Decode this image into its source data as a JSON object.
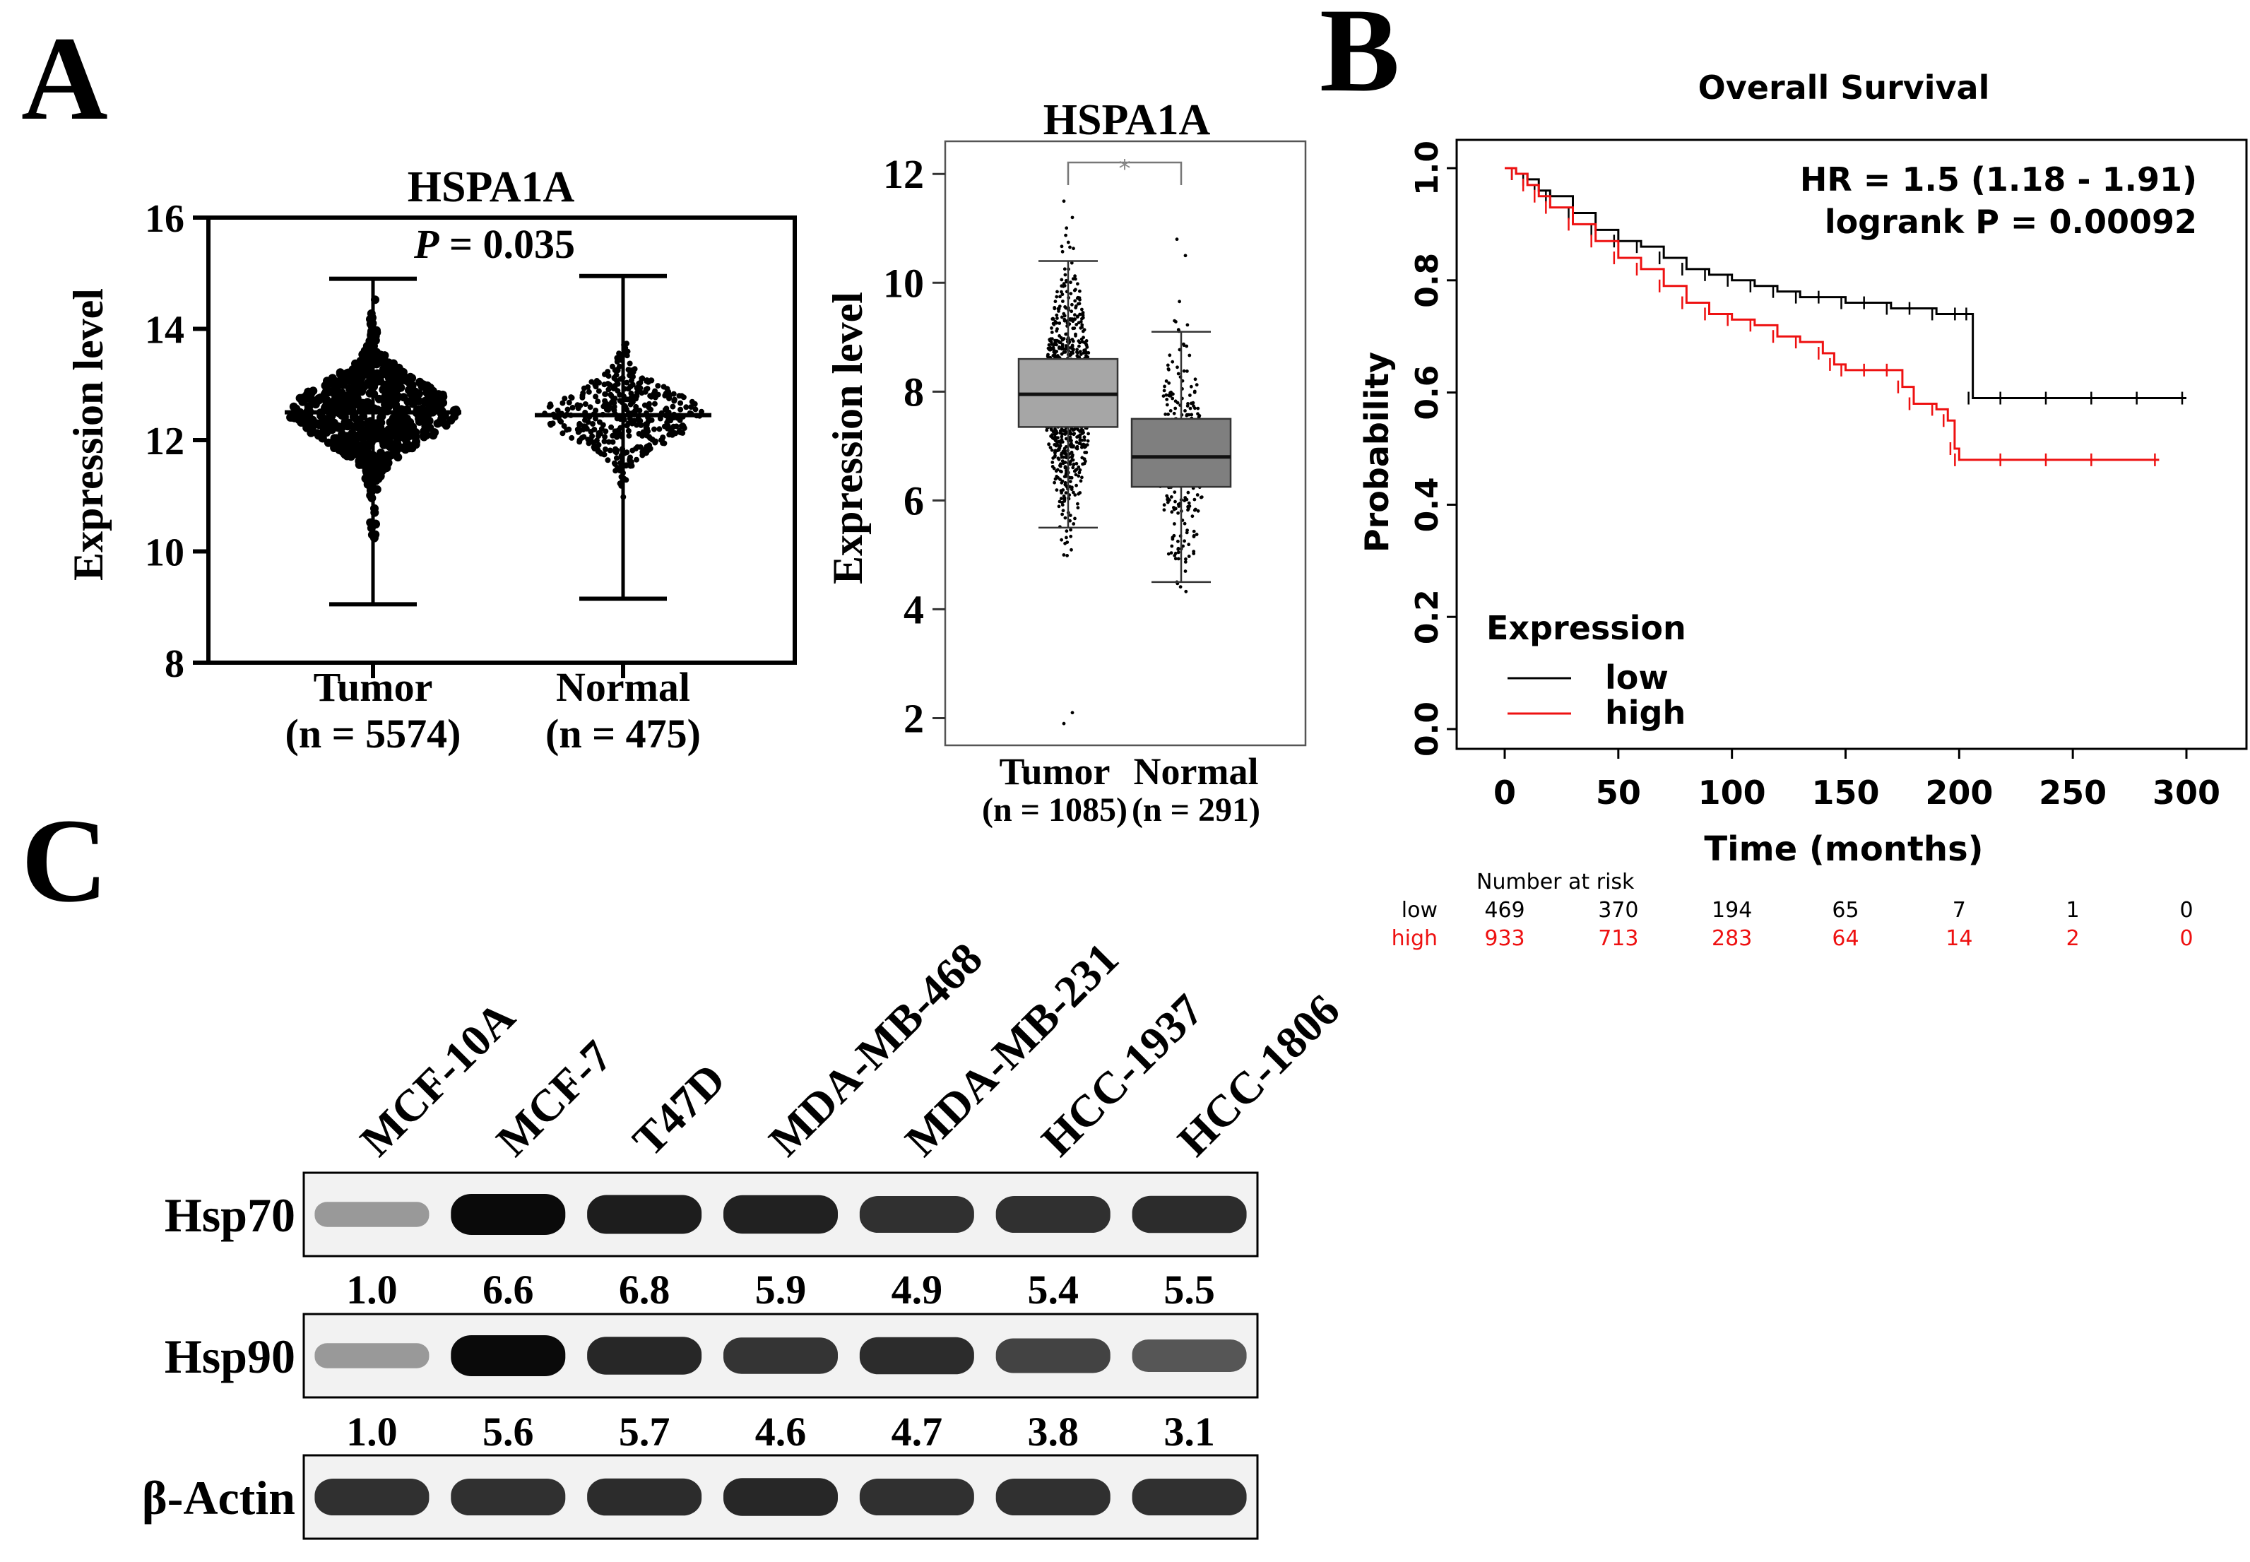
{
  "colors": {
    "ink": "#000000",
    "red": "#ee1111",
    "box_tumor": "#a6a6a6",
    "box_normal": "#7f7f7f",
    "blot_bg": "#f2f2f2",
    "axis_grey": "#888888"
  },
  "panel_letters": {
    "a": "A",
    "b": "B",
    "c": "C"
  },
  "chart_data": [
    {
      "id": "A1",
      "type": "scatter",
      "title": "HSPA1A",
      "p_label": "P",
      "p_value": "= 0.035",
      "ylabel": "Expression level",
      "ylim": [
        8,
        16
      ],
      "yticks": [
        8,
        10,
        12,
        14,
        16
      ],
      "groups": [
        {
          "name": "Tumor",
          "n_label": "(n = 5574)",
          "median": 12.5,
          "min": 9.05,
          "max": 14.9,
          "spread": 0.65,
          "points": 700
        },
        {
          "name": "Normal",
          "n_label": "(n = 475)",
          "median": 12.45,
          "min": 9.15,
          "max": 14.95,
          "spread": 0.55,
          "points": 420
        }
      ]
    },
    {
      "id": "A2",
      "type": "box",
      "title": "HSPA1A",
      "significance": "*",
      "ylabel": "Expression level",
      "ylim": [
        1.5,
        12.6
      ],
      "yticks": [
        2,
        4,
        6,
        8,
        10,
        12
      ],
      "groups": [
        {
          "name": "Tumor",
          "n_label": "(n = 1085)",
          "q1": 7.35,
          "median": 7.95,
          "q3": 8.6,
          "whisker_low": 5.5,
          "whisker_high": 10.4,
          "outliers_low": 1.9,
          "outliers_high": 11.5,
          "points": 900
        },
        {
          "name": "Normal",
          "n_label": "(n = 291)",
          "q1": 6.25,
          "median": 6.8,
          "q3": 7.5,
          "whisker_low": 4.5,
          "whisker_high": 9.1,
          "outliers_low": 4.5,
          "outliers_high": 10.8,
          "points": 290
        }
      ]
    },
    {
      "id": "B",
      "type": "line",
      "title": "Overall Survival",
      "hr_text": "HR = 1.5 (1.18 - 1.91)",
      "logrank_text": "logrank P = 0.00092",
      "xlabel": "Time (months)",
      "ylabel": "Probability",
      "xlim": [
        0,
        300
      ],
      "ylim": [
        0,
        1
      ],
      "xticks": [
        0,
        50,
        100,
        150,
        200,
        250,
        300
      ],
      "yticks": [
        "0.0",
        "0.2",
        "0.4",
        "0.6",
        "0.8",
        "1.0"
      ],
      "legend_title": "Expression",
      "series": [
        {
          "name": "low",
          "color": "#000000",
          "x": [
            0,
            5,
            10,
            15,
            20,
            30,
            40,
            50,
            60,
            70,
            80,
            90,
            100,
            110,
            120,
            130,
            140,
            150,
            160,
            170,
            180,
            190,
            200,
            205,
            206,
            220,
            240,
            260,
            280,
            300
          ],
          "y": [
            1.0,
            0.99,
            0.98,
            0.96,
            0.95,
            0.92,
            0.89,
            0.87,
            0.86,
            0.84,
            0.82,
            0.81,
            0.8,
            0.79,
            0.78,
            0.77,
            0.77,
            0.76,
            0.76,
            0.75,
            0.75,
            0.74,
            0.74,
            0.74,
            0.59,
            0.59,
            0.59,
            0.59,
            0.59,
            0.59
          ]
        },
        {
          "name": "high",
          "color": "#ee1111",
          "x": [
            0,
            5,
            10,
            15,
            20,
            30,
            40,
            50,
            60,
            70,
            80,
            90,
            100,
            110,
            120,
            130,
            140,
            145,
            150,
            160,
            170,
            175,
            180,
            190,
            195,
            198,
            200,
            220,
            240,
            260,
            288
          ],
          "y": [
            1.0,
            0.99,
            0.97,
            0.95,
            0.93,
            0.9,
            0.87,
            0.84,
            0.82,
            0.79,
            0.76,
            0.74,
            0.73,
            0.72,
            0.7,
            0.69,
            0.67,
            0.65,
            0.64,
            0.64,
            0.64,
            0.61,
            0.58,
            0.57,
            0.55,
            0.5,
            0.48,
            0.48,
            0.48,
            0.48,
            0.48
          ]
        }
      ],
      "risk_table": {
        "title": "Number at risk",
        "rows": [
          {
            "label": "low",
            "color": "#000000",
            "values": [
              "469",
              "370",
              "194",
              "65",
              "7",
              "1",
              "0"
            ]
          },
          {
            "label": "high",
            "color": "#ee1111",
            "values": [
              "933",
              "713",
              "283",
              "64",
              "14",
              "2",
              "0"
            ]
          }
        ]
      }
    },
    {
      "id": "C",
      "type": "table",
      "cell_lines": [
        "MCF-10A",
        "MCF-7",
        "T47D",
        "MDA-MB-468",
        "MDA-MB-231",
        "HCC-1937",
        "HCC-1806"
      ],
      "blots": [
        {
          "protein": "Hsp70",
          "intensity": [
            0.25,
            1.0,
            0.9,
            0.88,
            0.8,
            0.8,
            0.82
          ],
          "values": [
            "1.0",
            "6.6",
            "6.8",
            "5.9",
            "4.9",
            "5.4",
            "5.5"
          ]
        },
        {
          "protein": "Hsp90",
          "intensity": [
            0.25,
            1.0,
            0.85,
            0.78,
            0.82,
            0.7,
            0.6
          ],
          "values": [
            "1.0",
            "5.6",
            "5.7",
            "4.6",
            "4.7",
            "3.8",
            "3.1"
          ]
        },
        {
          "protein": "β-Actin",
          "intensity": [
            0.8,
            0.8,
            0.82,
            0.85,
            0.8,
            0.8,
            0.8
          ],
          "values": []
        }
      ]
    }
  ]
}
